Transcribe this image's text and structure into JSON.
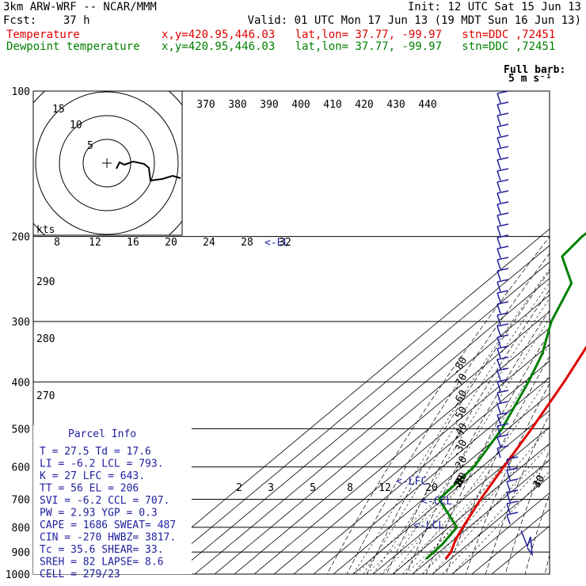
{
  "header": {
    "model": "3km ARW-WRF -- NCAR/MMM",
    "init": "Init: 12 UTC Sat 15 Jun 13",
    "fcst": "Fcst:    37 h",
    "valid": "Valid: 01 UTC Mon 17 Jun 13 (19 MDT Sun 16 Jun 13)",
    "temp_label": "Temperature",
    "temp_info": "x,y=420.95,446.03   lat,lon= 37.77, -99.97   stn=DDC ,72451",
    "dew_label": "Dewpoint temperature",
    "dew_info": "x,y=420.95,446.03   lat,lon= 37.77, -99.97   stn=DDC ,72451"
  },
  "colors": {
    "temperature": "#e00000",
    "dewpoint": "#008000",
    "wind": "#2020a0",
    "grid": "#000000"
  },
  "chart_data": {
    "type": "line",
    "pressure_levels": [
      100,
      200,
      300,
      400,
      500,
      600,
      700,
      800,
      900,
      1000
    ],
    "isotherm_labels": [
      -80,
      -70,
      -60,
      -50,
      -40,
      -30,
      -20,
      -10,
      0,
      10,
      20,
      30,
      40
    ],
    "theta_labels": [
      370,
      380,
      390,
      400,
      410,
      420,
      430,
      440
    ],
    "theta_left_labels": [
      290,
      280,
      270
    ],
    "mixing_ratio_upper": [
      8,
      12,
      16,
      20,
      24,
      28,
      32
    ],
    "mixing_ratio_lower": [
      2,
      3,
      5,
      8,
      12,
      20
    ],
    "el_label": "<-EL",
    "lfc_label": "<-LFC",
    "ccl_label": "<-CCL",
    "lcl_label": "<-LCL",
    "full_barb_label": "Full barb:",
    "full_barb_value": "5 m s⁻¹",
    "kts_label": "kts",
    "hodograph_rings": [
      "5",
      "10",
      "15"
    ],
    "temperature": [
      {
        "p": 100,
        "t": -63
      },
      {
        "p": 150,
        "t": -62
      },
      {
        "p": 200,
        "t": -59
      },
      {
        "p": 250,
        "t": -47
      },
      {
        "p": 300,
        "t": -37
      },
      {
        "p": 400,
        "t": -20
      },
      {
        "p": 500,
        "t": -8
      },
      {
        "p": 600,
        "t": 1
      },
      {
        "p": 700,
        "t": 9
      },
      {
        "p": 800,
        "t": 17
      },
      {
        "p": 850,
        "t": 21
      },
      {
        "p": 900,
        "t": 26
      },
      {
        "p": 930,
        "t": 27.5
      }
    ],
    "dewpoint": [
      {
        "p": 100,
        "t": -85
      },
      {
        "p": 150,
        "t": -94
      },
      {
        "p": 200,
        "t": -99
      },
      {
        "p": 220,
        "t": -97
      },
      {
        "p": 250,
        "t": -76
      },
      {
        "p": 300,
        "t": -63
      },
      {
        "p": 350,
        "t": -48
      },
      {
        "p": 400,
        "t": -38
      },
      {
        "p": 500,
        "t": -23
      },
      {
        "p": 600,
        "t": -14
      },
      {
        "p": 700,
        "t": -12
      },
      {
        "p": 800,
        "t": 14
      },
      {
        "p": 870,
        "t": 17
      },
      {
        "p": 930,
        "t": 17.6
      }
    ]
  },
  "parcel": {
    "title": "Parcel Info",
    "rows": [
      "T  =    27.5  Td =  17.6",
      "LI =    -6.2  LCL =  793.",
      "K  =     27  LFC =  643.",
      "TT =     56  EL  =  206",
      "SVI =   -6.2  CCL =  707.",
      "PW =   2.93  YGP =   0.3",
      "CAPE =  1686  SWEAT=  487",
      "CIN =   -270  HWBZ= 3817.",
      "Tc =   35.6  SHEAR=  33.",
      "SREH =    82  LAPSE=  8.6",
      "CELL = 279/23"
    ]
  }
}
